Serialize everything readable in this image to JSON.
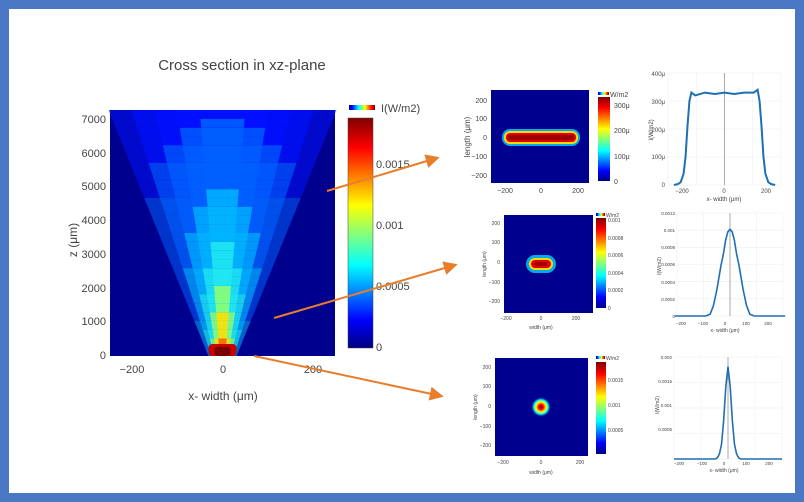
{
  "chart_data": [
    {
      "type": "heatmap",
      "title": "Cross section in xz-plane",
      "xlabel": "x- width (μm)",
      "ylabel": "z (μm)",
      "x_ticks": [
        "−200",
        "0",
        "200"
      ],
      "y_ticks": [
        "0",
        "1000",
        "2000",
        "3000",
        "4000",
        "5000",
        "6000",
        "7000"
      ],
      "xlim": [
        -250,
        250
      ],
      "ylim": [
        0,
        7250
      ],
      "colorscale": "jet",
      "colorbar": {
        "title": "I(W/m2)",
        "ticks": [
          "0",
          "0.0005",
          "0.001",
          "0.0015"
        ],
        "range": [
          0,
          0.0018
        ]
      }
    },
    {
      "type": "heatmap",
      "xlabel": "",
      "ylabel": "length (μm)",
      "x_ticks": [
        "−200",
        "0",
        "200"
      ],
      "y_ticks": [
        "200",
        "100",
        "0",
        "−100",
        "−200"
      ],
      "colorbar": {
        "title": "W/m2",
        "ticks": [
          "300μ",
          "200μ",
          "100μ",
          "0"
        ]
      }
    },
    {
      "type": "line",
      "xlabel": "x- width (μm)",
      "ylabel": "I(W/m2)",
      "x_ticks": [
        "−200",
        "0",
        "200"
      ],
      "y_ticks": [
        "400μ",
        "300μ",
        "200μ",
        "100μ",
        "0"
      ],
      "series": [
        {
          "x": [
            -260,
            -240,
            -225,
            -210,
            -200,
            -190,
            -180,
            -170,
            -150,
            -100,
            -50,
            0,
            50,
            100,
            150,
            170,
            180,
            190,
            200,
            210,
            225,
            240,
            260
          ],
          "y": [
            0,
            3e-06,
            1e-05,
            4e-05,
            0.0001,
            0.00021,
            0.0003,
            0.00033,
            0.00032,
            0.00033,
            0.000325,
            0.00033,
            0.000325,
            0.00033,
            0.00033,
            0.00034,
            0.0003,
            0.00021,
            0.0001,
            4e-05,
            1e-05,
            3e-06,
            0
          ]
        }
      ]
    },
    {
      "type": "heatmap",
      "xlabel": "width (μm)",
      "ylabel": "length (μm)",
      "x_ticks": [
        "−200",
        "0",
        "200"
      ],
      "y_ticks": [
        "200",
        "100",
        "0",
        "−100",
        "−200"
      ],
      "colorbar": {
        "title": "W/m2",
        "ticks": [
          "0.001",
          "0.0008",
          "0.0006",
          "0.0004",
          "0.0002",
          "0"
        ]
      }
    },
    {
      "type": "line",
      "xlabel": "x- width (μm)",
      "ylabel": "I(W/m2)",
      "x_ticks": [
        "−200",
        "−100",
        "0",
        "100",
        "200"
      ],
      "y_ticks": [
        "0.0012",
        "0.001",
        "0.0008",
        "0.0006",
        "0.0004",
        "0.0002",
        "0"
      ],
      "series": [
        {
          "x": [
            -250,
            -110,
            -90,
            -75,
            -60,
            -50,
            -40,
            -30,
            -20,
            -10,
            0,
            10,
            20,
            30,
            40,
            50,
            60,
            75,
            90,
            110,
            250
          ],
          "y": [
            0,
            0,
            2e-05,
            0.00012,
            0.0003,
            0.00045,
            0.0006,
            0.00072,
            0.00088,
            0.00098,
            0.00101,
            0.00098,
            0.00088,
            0.00072,
            0.0006,
            0.00045,
            0.0003,
            0.00012,
            2e-05,
            0,
            0
          ]
        }
      ]
    },
    {
      "type": "heatmap",
      "xlabel": "width (μm)",
      "ylabel": "length (μm)",
      "x_ticks": [
        "−200",
        "0",
        "200"
      ],
      "y_ticks": [
        "200",
        "100",
        "0",
        "−100",
        "−200"
      ],
      "colorbar": {
        "title": "W/m2",
        "ticks": [
          "0.0015",
          "0.001",
          "0.0005"
        ]
      }
    },
    {
      "type": "line",
      "xlabel": "x- width (μm)",
      "ylabel": "I(W/m2)",
      "x_ticks": [
        "−200",
        "−100",
        "0",
        "100",
        "200"
      ],
      "y_ticks": [
        "0.002",
        "0.0015",
        "0.001",
        "0.0005"
      ],
      "series": [
        {
          "x": [
            -250,
            -60,
            -50,
            -40,
            -30,
            -20,
            -10,
            0,
            10,
            20,
            30,
            40,
            50,
            60,
            250
          ],
          "y": [
            0,
            0,
            2e-05,
            0.0001,
            0.0003,
            0.0008,
            0.0015,
            0.0019,
            0.0015,
            0.0008,
            0.0003,
            0.0001,
            2e-05,
            0,
            0
          ]
        }
      ]
    }
  ],
  "colors": {
    "background": "#ffffff",
    "frame": "#4a78c4",
    "arrow": "#e87d2c",
    "line": "#1f6fb4"
  }
}
